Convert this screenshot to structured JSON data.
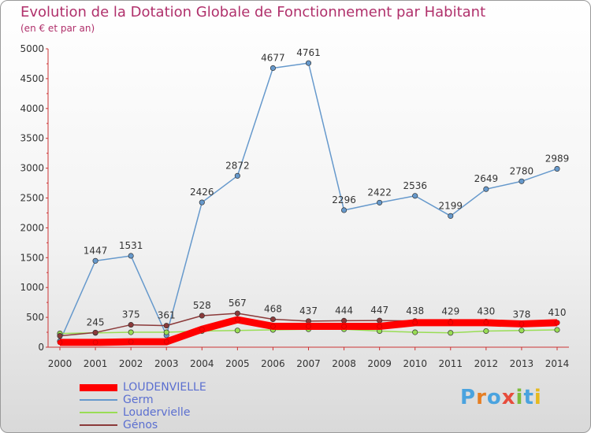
{
  "title": "Evolution de la Dotation Globale de Fonctionnement par Habitant",
  "subtitle": "(en € et par an)",
  "logo": {
    "text": "Proxiti",
    "colors": [
      "#4aa3df",
      "#e67e22",
      "#4aa3df",
      "#e74c3c",
      "#7dbb3c",
      "#4aa3df",
      "#e6b91e"
    ]
  },
  "chart_data": {
    "type": "line",
    "x": [
      "2000",
      "2001",
      "2002",
      "2003",
      "2004",
      "2005",
      "2006",
      "2007",
      "2008",
      "2009",
      "2010",
      "2011",
      "2012",
      "2013",
      "2014"
    ],
    "ylim": [
      0,
      5000
    ],
    "yticks": [
      0,
      500,
      1000,
      1500,
      2000,
      2500,
      3000,
      3500,
      4000,
      4500,
      5000
    ],
    "grid": false,
    "legend_position": "bottom-left",
    "series": [
      {
        "name": "LOUDENVIELLE",
        "color": "#ff0000",
        "values": [
          80,
          80,
          90,
          90,
          300,
          460,
          350,
          350,
          350,
          350,
          410,
          410,
          410,
          390,
          410
        ]
      },
      {
        "name": "Germ",
        "color": "#6699cc",
        "values": [
          100,
          1447,
          1531,
          200,
          2426,
          2872,
          4677,
          4761,
          2296,
          2422,
          2536,
          2199,
          2649,
          2780,
          2989
        ]
      },
      {
        "name": "Loudervielle",
        "color": "#99dd55",
        "values": [
          230,
          240,
          250,
          250,
          270,
          280,
          290,
          300,
          300,
          270,
          250,
          240,
          270,
          280,
          290
        ]
      },
      {
        "name": "Génos",
        "color": "#8b3a3a",
        "values": [
          190,
          245,
          375,
          361,
          528,
          567,
          468,
          437,
          444,
          447,
          438,
          429,
          430,
          378,
          410
        ]
      }
    ],
    "data_labels": {
      "Germ": [
        "",
        "1447",
        "1531",
        "",
        "2426",
        "2872",
        "4677",
        "4761",
        "2296",
        "2422",
        "2536",
        "2199",
        "2649",
        "2780",
        "2989"
      ],
      "Génos": [
        "",
        "245",
        "375",
        "361",
        "528",
        "567",
        "468",
        "437",
        "444",
        "447",
        "438",
        "429",
        "430",
        "378",
        "410"
      ]
    }
  }
}
